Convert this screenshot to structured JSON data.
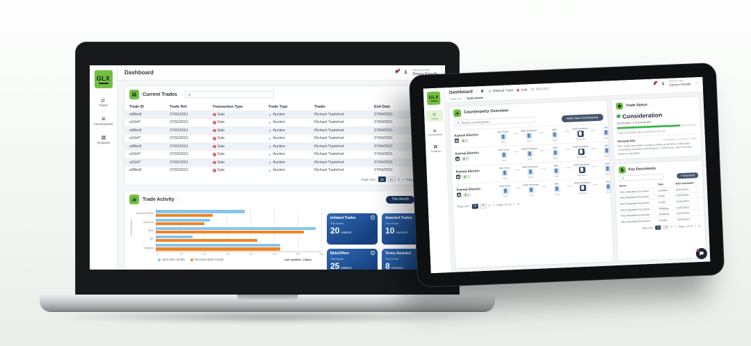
{
  "glyphs": {
    "divider": "|",
    "breadcrumb_sep": "›",
    "chevron_right": "›",
    "chevron_down": "⌄",
    "kebab": "⋮",
    "info": "i"
  },
  "pager_icons": {
    "first": "|<",
    "prev": "<",
    "next": ">",
    "last": ">|"
  },
  "brand": {
    "green": "#72bf44",
    "navy": "#17365c",
    "bar_blue": "#85c6ea",
    "bar_orange": "#f08426",
    "sale_red": "#df6868",
    "live_navy": "#223a5e",
    "status_green": "#3cb54a"
  },
  "laptop": {
    "logo": {
      "text": "GLX"
    },
    "sidebar": {
      "items": [
        {
          "label": "Trades"
        },
        {
          "label": "Counterparties"
        },
        {
          "label": "Templates"
        }
      ]
    },
    "header": {
      "title": "Dashboard",
      "welcome_small": "Welcome back",
      "user_name": "Donna Friendly"
    },
    "current_trades": {
      "title": "Current Trades",
      "search_placeholder": "",
      "columns": [
        "Trade ID",
        "Trade Ref.",
        "Transaction Type",
        "Trade Type",
        "Trader",
        "End Date",
        "Status"
      ],
      "rows": [
        {
          "id": "a98bc8",
          "ref": "27/03/2021",
          "transaction": "Sale",
          "trade_type": "Auction",
          "trader": "Richard Tradeford",
          "end_date": "27/04/2021",
          "status": "Live"
        },
        {
          "id": "a10ef7",
          "ref": "27/03/2021",
          "transaction": "Sale",
          "trade_type": "Auction",
          "trader": "Richard Tradeford",
          "end_date": "27/04/2021",
          "status": "Live"
        },
        {
          "id": "a98bc8",
          "ref": "27/03/2021",
          "transaction": "Sale",
          "trade_type": "Auction",
          "trader": "Richard Tradeford",
          "end_date": "27/04/2021",
          "status": "Live"
        },
        {
          "id": "a10ef7",
          "ref": "27/03/2021",
          "transaction": "Sale",
          "trade_type": "Auction",
          "trader": "Richard Tradeford",
          "end_date": "27/04/2021",
          "status": "Live"
        },
        {
          "id": "a98bc8",
          "ref": "27/03/2021",
          "transaction": "Sale",
          "trade_type": "Auction",
          "trader": "Richard Tradeford",
          "end_date": "27/04/2021",
          "status": "Live"
        },
        {
          "id": "a10ef7",
          "ref": "27/03/2021",
          "transaction": "Sale",
          "trade_type": "Auction",
          "trader": "Richard Tradeford",
          "end_date": "27/04/2021",
          "status": "Live"
        },
        {
          "id": "a10ef7",
          "ref": "27/03/2021",
          "transaction": "Sale",
          "trade_type": "Auction",
          "trader": "Richard Tradeford",
          "end_date": "27/04/2021",
          "status": "Live"
        },
        {
          "id": "a98bc8",
          "ref": "27/03/2021",
          "transaction": "Sale",
          "trade_type": "Auction",
          "trader": "Richard Tradeford",
          "end_date": "27/04/2021",
          "status": "Live"
        }
      ],
      "pagination": {
        "label": "Page size:",
        "sizes": [
          "10",
          "50"
        ],
        "active_size": "10",
        "page": "Page 1 of 10"
      }
    },
    "trade_activity": {
      "title": "Trade Activity",
      "period_buttons": [
        {
          "label": "This Month"
        },
        {
          "label": "This Year"
        }
      ],
      "last_updated": "Last updated: 1:45pm",
      "chart_data": {
        "type": "bar",
        "orientation": "horizontal",
        "title": "Trade Activity",
        "categories": [
          "Kansai Electric",
          "Glencore",
          "Shell",
          "BP",
          "Trafigura"
        ],
        "series": [
          {
            "name": "Sent (this month)",
            "color": "#85c6ea",
            "values": [
              75,
              46,
              135,
              31,
              105
            ]
          },
          {
            "name": "Received (this month)",
            "color": "#f08426",
            "values": [
              48,
              41,
              125,
              86,
              105
            ]
          }
        ],
        "xlim": [
          0,
          140
        ],
        "x_ticks": [
          0,
          20,
          40,
          60,
          80,
          100,
          120,
          140
        ],
        "ylabel": "Counterparties",
        "grid": "dashed-vertical",
        "legend_position": "bottom-left"
      },
      "kpis": [
        {
          "title": "Initiated Trades",
          "period": "This Month",
          "value": "20",
          "unit": "Initiated"
        },
        {
          "title": "Awarded Trades",
          "period": "This Month",
          "value": "10",
          "unit": "Awarded"
        },
        {
          "title": "Bids/Offers",
          "period": "This Month",
          "value": "25",
          "unit": "Initiated"
        },
        {
          "title": "Terms Awarded",
          "period": "This Month",
          "value": "8",
          "unit": "Awarded"
        }
      ]
    }
  },
  "tablet": {
    "logo": {
      "text": "GLX"
    },
    "sidebar": {
      "items": [
        {
          "label": "Trades"
        },
        {
          "label": "Counterparties"
        },
        {
          "label": "Templates"
        }
      ]
    },
    "header": {
      "title": "Dashboard",
      "trade_kind": "Bilateral Trade",
      "transaction": "Sale",
      "trade_id": "ID: #01/1237",
      "breadcrumb": {
        "parent": "Trade List",
        "current": "Trade Details"
      },
      "welcome_small": "Welcome back",
      "user_name": "Donna Friendly"
    },
    "counterparty": {
      "title": "Counterparty Overview",
      "search_placeholder": "Search counterparties",
      "invite_button": "Invite New Counterparty",
      "rows": [
        {
          "name": "Kansai Electric"
        },
        {
          "name": "Kansai Electric"
        },
        {
          "name": "Kansai Electric"
        },
        {
          "name": "Kansai Electric"
        }
      ],
      "steps": [
        {
          "label": "New Terms",
          "status": "Sent",
          "variant": "light"
        },
        {
          "label": "Draft Termsheet",
          "status": "Sent",
          "variant": "light"
        },
        {
          "label": "Offer",
          "status": "Sent",
          "variant": "light"
        },
        {
          "label": "Draft Termsheet",
          "status": "Received",
          "variant": "dark"
        },
        {
          "label": "Bid",
          "status": "Sent",
          "variant": "light"
        }
      ],
      "pagination": {
        "label": "Page size:",
        "sizes": [
          "10",
          "50"
        ],
        "active_size": "10",
        "page": "Page 1 of 10"
      }
    },
    "trade_status": {
      "title": "Trade Status",
      "status": "Consideration",
      "time_left": "10 minutes, 5 seconds left",
      "progress_pct": 80,
      "end_date": "Trade End Date: 08:00 15/07/21 UTC+8",
      "general_info": {
        "title": "General Info",
        "last_updated": "Last updated 11 Aug 2021 1:15pm",
        "text": "Key Trade information remains visible at all times, while also conserving valuable vertical space. 3 lines max, then it scrolls - subject to iteration."
      }
    },
    "key_documents": {
      "title": "Key Documents",
      "search_placeholder": "",
      "add_button": "+ Document",
      "columns": [
        "Name",
        "Type",
        "Date Uploaded"
      ],
      "rows": [
        {
          "name": "Very Important Document",
          "type": "Contract",
          "date": "01/01/2021"
        },
        {
          "name": "Very Important Document",
          "type": "Credit",
          "date": "01/01/2021"
        },
        {
          "name": "Very Important Document",
          "type": "Credit",
          "date": "01/01/2021"
        },
        {
          "name": "Very Important Document",
          "type": "Shipping",
          "date": "01/01/2021"
        },
        {
          "name": "Very Important Document",
          "type": "Shipping",
          "date": "01/01/2021"
        },
        {
          "name": "Very Important Document",
          "type": "Invoice",
          "date": "01/01/2021"
        }
      ],
      "pagination": {
        "label": "Page size:",
        "sizes": [
          "10",
          "50"
        ],
        "active_size": "10",
        "page": "Page 1 of 10"
      }
    }
  }
}
